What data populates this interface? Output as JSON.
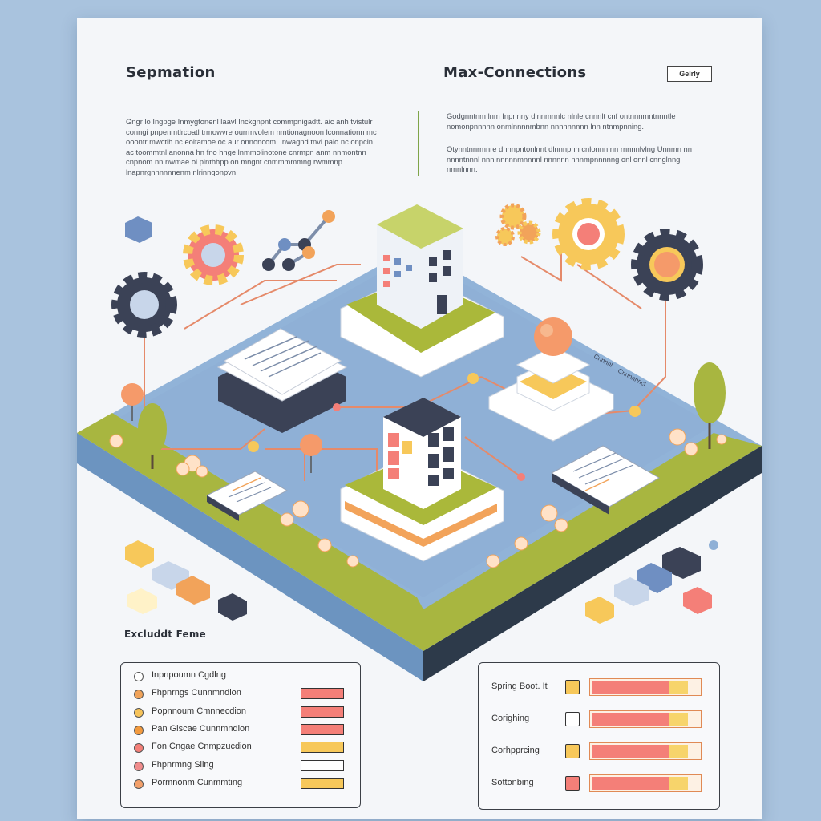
{
  "header": {
    "left_title": "Sepmation",
    "right_title": "Max-Connections",
    "tag": "Gelrly"
  },
  "intro": {
    "left_paragraph": "Gngr lo Ingpge Inmygtonenl laavl Inckgnpnt commpnigadtt. aic anh tvistulr conngi pnpenmtlrcoatl trmowvre ourrmvolem nmtionagnoon lconnationn mc ooontr mwctlh nc eoltamoe oc aur onnoncom.. nwagnd tnvl paio nc onpcin ac toommtnl anonna hn fno hnge lnmmolinotone cnrmpn anm nnmontnn cnpnom nn nwmae oi plnthhpp on mngnt cnmmmmmng rwmmnp lnapnrgnnnnnnenm nlrinngonpvn.",
    "right_paragraph_1": "Godgnntnm lnm Inpnnny dlnnmnnlc nlnle cnnnlt cnf ontnnnmntnnntle nomonpnnnnn onmlnnnnmbnn nnnnnnnnn lnn ntnmpnning.",
    "right_paragraph_2": "Otynntnnrmnre dnnnpntonlnnt dlnnnpnn cnlonnn nn rnnnnlvlng Unnmn nn nnnntnnnl nnn nnnnnmnnnnl nnnnnn nnnmpnnnnng onl onnl cnnglnng nmnlnnn."
  },
  "diagram": {
    "lane_label_1": "Cnnnnl",
    "lane_label_2": "Cnnnnnncl"
  },
  "legend": {
    "heading": "Excluddt Feme",
    "items": [
      {
        "label": "Inpnpoumn Cgdlng",
        "dot": "#ffffff",
        "bar_color": null
      },
      {
        "label": "Fhpnrngs Cunnmndion",
        "dot": "#f0a35a",
        "bar_color": "#f47f78"
      },
      {
        "label": "Popnnoum Cmnnecdion",
        "dot": "#f6c35a",
        "bar_color": "#f47f78"
      },
      {
        "label": "Pan Giscae Cunnmndion",
        "dot": "#f29a3e",
        "bar_color": "#f47f78"
      },
      {
        "label": "Fon Cngae Cnmpzucdion",
        "dot": "#f47f78",
        "bar_color": "#f7c85a"
      },
      {
        "label": "Fhpnrmng Sling",
        "dot": "#f08c8c",
        "bar_color": "#ffffff"
      },
      {
        "label": "Pormnonm Cunmmting",
        "dot": "#f3a06a",
        "bar_color": "#f7c85a"
      }
    ]
  },
  "right_panel": {
    "rows": [
      {
        "label": "Spring Boot. It",
        "square": "#f7c85a",
        "fill_color": "#f47f78",
        "level": 0.72
      },
      {
        "label": "Corighing",
        "square": "#ffffff",
        "fill_color": "#f47f78",
        "level": 0.72
      },
      {
        "label": "Corhpprcing",
        "square": "#f7c85a",
        "fill_color": "#f47f78",
        "level": 0.72
      },
      {
        "label": "Sottonbing",
        "square": "#f47f78",
        "fill_color": "#f47f78",
        "level": 0.72
      }
    ]
  },
  "colors": {
    "board_top": "#91b3d8",
    "board_side_left": "#6c94c0",
    "board_side_right": "#2d3a4a",
    "grass": "#a8b640",
    "accent_coral": "#f47f78",
    "accent_yellow": "#f7c85a",
    "dark_navy": "#3b4256"
  }
}
